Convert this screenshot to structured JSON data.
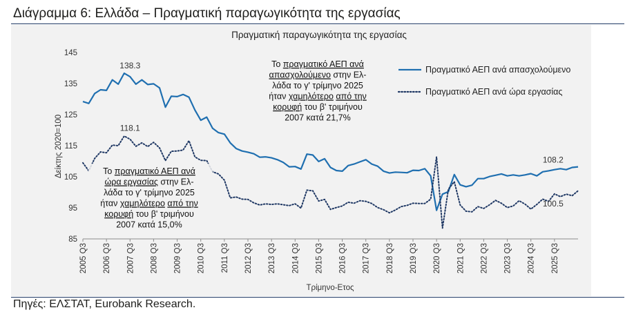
{
  "heading": "Διάγραμμα 6: Ελλάδα – Πραγματική παραγωγικότητα της εργασίας",
  "source": "Πηγές: ΕΛΣΤΑΤ, Eurobank Research.",
  "colors": {
    "series1": "#1f6fb0",
    "series2": "#1f3864",
    "rule": "#1f3864",
    "panel": "#f2f2f2"
  },
  "chart_data": {
    "type": "line",
    "title": "Πραγματική παραγωγικότητα της εργασίας",
    "xlabel": "Τρίμηνο-Ετος",
    "ylabel": "Δείκτης 2020=100",
    "ylim": [
      85,
      145
    ],
    "yticks": [
      85,
      95,
      105,
      115,
      125,
      135,
      145
    ],
    "grid": false,
    "legend_position": "top-right",
    "xticks": [
      "2005 Q3",
      "2006 Q3",
      "2007 Q3",
      "2008 Q3",
      "2009 Q3",
      "2010 Q3",
      "2011 Q3",
      "2012 Q3",
      "2013 Q3",
      "2014 Q3",
      "2015 Q3",
      "2016 Q3",
      "2017 Q3",
      "2018 Q3",
      "2019 Q3",
      "2020 Q3",
      "2021 Q3",
      "2022 Q3",
      "2023 Q3",
      "2024 Q3",
      "2025 Q3"
    ],
    "x_start": "2005 Q3",
    "x_end": "2025 Q3",
    "series": [
      {
        "name": "Πραγματικό ΑΕΠ ανά απασχολούμενο",
        "style": "solid",
        "values": [
          129.2,
          128.6,
          131.8,
          133.0,
          132.8,
          136.2,
          134.8,
          138.3,
          137.2,
          134.8,
          136.2,
          134.7,
          134.9,
          133.6,
          127.4,
          130.9,
          130.8,
          131.5,
          130.6,
          126.5,
          123.2,
          124.2,
          120.6,
          119.2,
          118.7,
          115.9,
          114.1,
          113.3,
          112.9,
          112.4,
          111.3,
          111.4,
          111.1,
          110.5,
          109.6,
          108.2,
          108.3,
          107.5,
          112.3,
          112.0,
          109.9,
          110.8,
          108.0,
          107.0,
          106.8,
          108.6,
          109.1,
          109.8,
          110.5,
          109.1,
          108.4,
          106.8,
          106.2,
          106.5,
          106.4,
          106.3,
          107.1,
          107.0,
          107.6,
          105.3,
          94.2,
          99.4,
          100.2,
          105.7,
          102.4,
          101.8,
          102.3,
          104.4,
          104.4,
          105.1,
          105.5,
          105.9,
          105.3,
          105.6,
          105.3,
          105.6,
          106.0,
          105.3,
          106.6,
          106.9,
          107.3,
          107.6,
          107.3,
          108.0,
          108.2
        ]
      },
      {
        "name": "Πραγματικό ΑΕΠ ανά ώρα εργασίας",
        "style": "dotted",
        "values": [
          109.5,
          106.9,
          110.9,
          113.0,
          112.7,
          115.2,
          115.0,
          118.1,
          117.1,
          114.8,
          115.9,
          114.7,
          116.1,
          114.3,
          110.2,
          113.2,
          113.3,
          113.6,
          116.6,
          111.4,
          110.3,
          110.2,
          106.6,
          105.9,
          103.9,
          98.2,
          98.5,
          97.8,
          97.7,
          96.6,
          95.9,
          96.3,
          96.1,
          96.3,
          96.0,
          95.7,
          96.3,
          94.9,
          100.7,
          100.5,
          97.2,
          97.7,
          94.5,
          95.1,
          95.6,
          96.8,
          96.5,
          97.3,
          97.1,
          96.4,
          95.1,
          94.4,
          93.4,
          94.3,
          95.4,
          95.8,
          96.5,
          96.4,
          96.4,
          97.8,
          111.4,
          88.5,
          101.0,
          103.4,
          95.9,
          93.9,
          93.7,
          95.4,
          94.8,
          96.0,
          97.4,
          96.5,
          95.1,
          95.6,
          97.3,
          96.2,
          94.6,
          96.1,
          97.8,
          97.1,
          99.5,
          98.6,
          99.4,
          98.9,
          100.5
        ]
      }
    ],
    "data_labels": [
      {
        "text": "138.3",
        "series": 0,
        "at": "2007 Q3"
      },
      {
        "text": "118.1",
        "series": 1,
        "at": "2007 Q3"
      },
      {
        "text": "108.2",
        "series": 0,
        "at": "2025 Q3"
      },
      {
        "text": "100.5",
        "series": 1,
        "at": "2025 Q3"
      }
    ],
    "annotations": [
      {
        "id": "per-employee",
        "lines": [
          [
            {
              "t": "Το ",
              "u": false
            },
            {
              "t": "πραγματικό ΑΕΠ ανά",
              "u": true
            }
          ],
          [
            {
              "t": "απασχολούμενο",
              "u": true
            },
            {
              "t": " στην Ελ-",
              "u": false
            }
          ],
          [
            {
              "t": "λάδα το γ' τρίμηνο 2025",
              "u": false
            }
          ],
          [
            {
              "t": "ήταν ",
              "u": false
            },
            {
              "t": "χαμηλότερο",
              "u": true
            },
            {
              "t": " ",
              "u": false
            },
            {
              "t": "από την",
              "u": true
            }
          ],
          [
            {
              "t": "κορυφή",
              "u": true
            },
            {
              "t": " του β' τριμήνου",
              "u": false
            }
          ],
          [
            {
              "t": "2007 κατά 21,7%",
              "u": false
            }
          ]
        ]
      },
      {
        "id": "per-hour",
        "lines": [
          [
            {
              "t": "Το ",
              "u": false
            },
            {
              "t": "πραγματικό ΑΕΠ ανά",
              "u": true
            }
          ],
          [
            {
              "t": "ώρα εργασίας",
              "u": true
            },
            {
              "t": " στην Ελ-",
              "u": false
            }
          ],
          [
            {
              "t": "λάδα το γ' τρίμηνο 2025",
              "u": false
            }
          ],
          [
            {
              "t": "ήταν ",
              "u": false
            },
            {
              "t": "χαμηλότερο",
              "u": true
            },
            {
              "t": " ",
              "u": false
            },
            {
              "t": "από την",
              "u": true
            }
          ],
          [
            {
              "t": "κορυφή",
              "u": true
            },
            {
              "t": " του β' τριμήνου",
              "u": false
            }
          ],
          [
            {
              "t": "2007 κατά 15,0%",
              "u": false
            }
          ]
        ]
      }
    ]
  }
}
